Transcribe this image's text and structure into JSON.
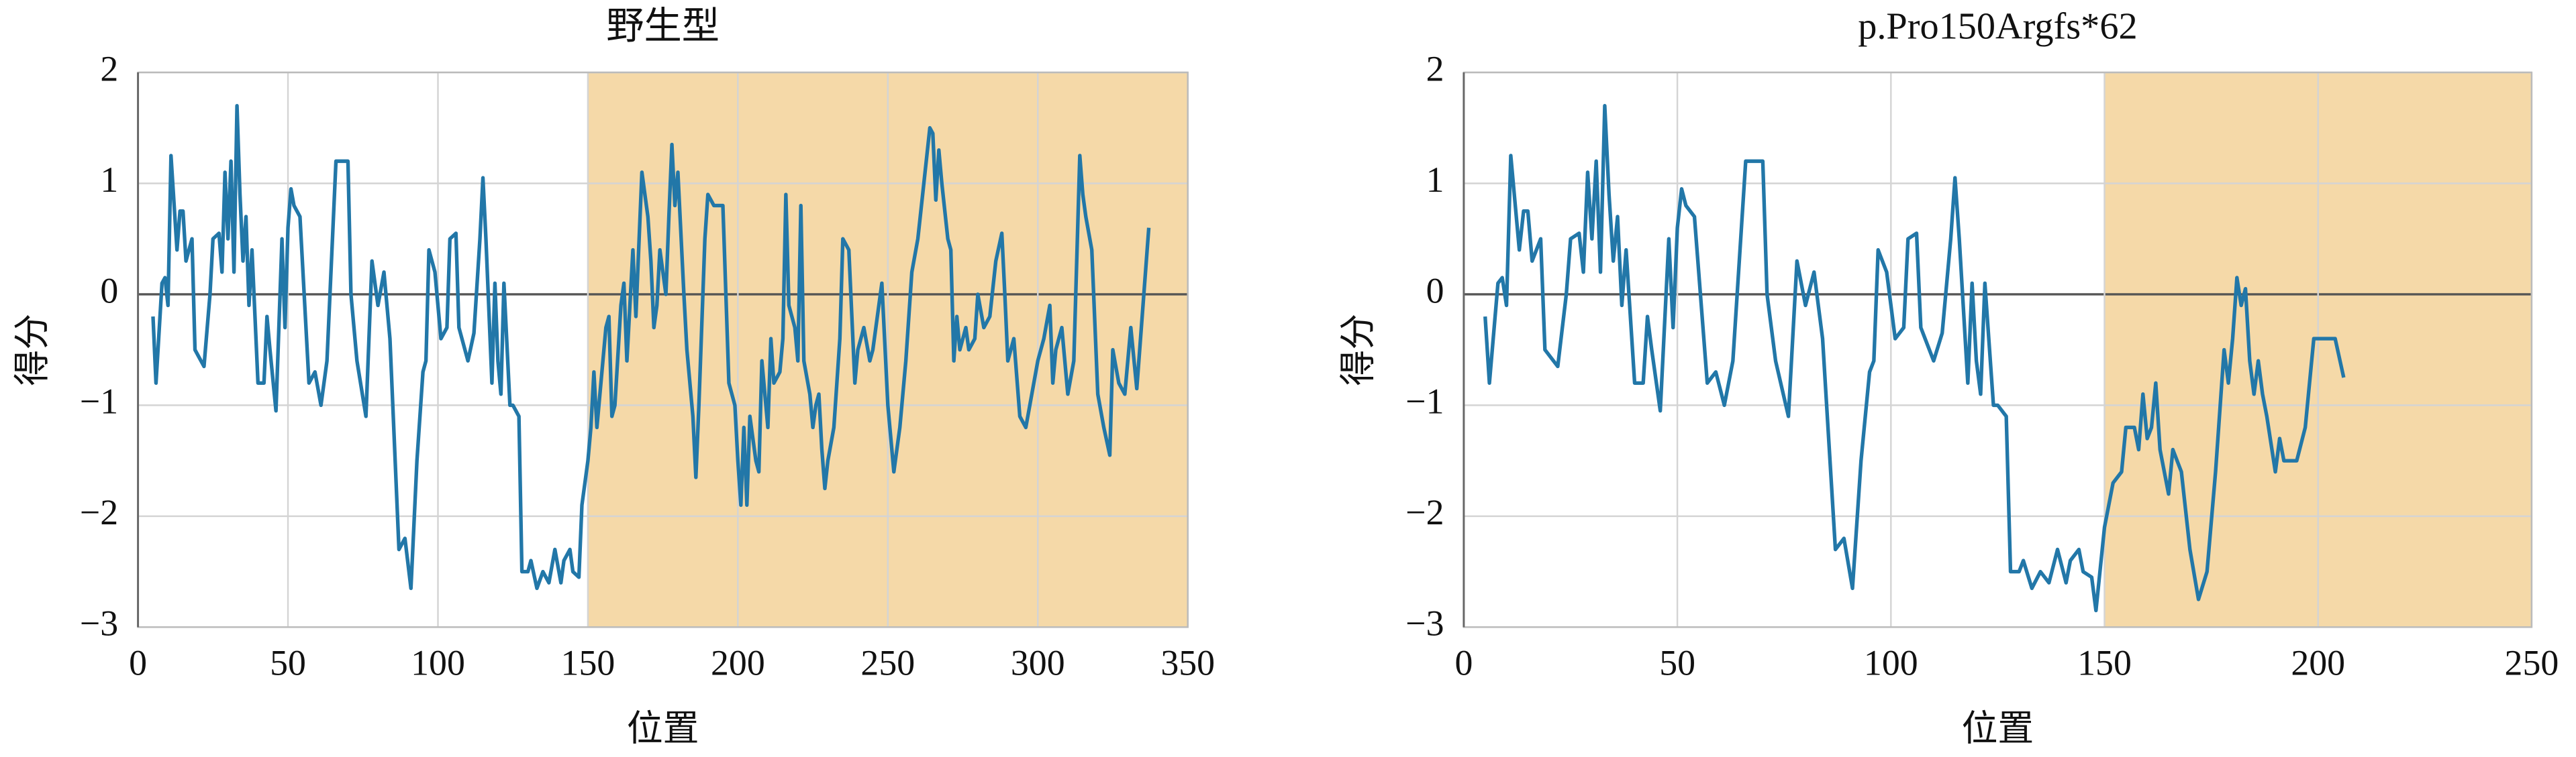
{
  "chart_data": [
    {
      "type": "line",
      "title": "野生型",
      "xlabel": "位置",
      "ylabel": "得分",
      "xlim": [
        0,
        350
      ],
      "ylim": [
        -3,
        2
      ],
      "xticks": [
        0,
        50,
        100,
        150,
        200,
        250,
        300,
        350
      ],
      "yticks": [
        {
          "value": -3,
          "label": "−3"
        },
        {
          "value": -2,
          "label": "−2"
        },
        {
          "value": -1,
          "label": "−1"
        },
        0,
        1,
        2
      ],
      "grid": true,
      "shaded_region": [
        150,
        350
      ],
      "shade_color": "#f5d9a8",
      "x": [
        5,
        6,
        8,
        9,
        10,
        11,
        13,
        14,
        15,
        16,
        18,
        19,
        21,
        22,
        24,
        25,
        27,
        28,
        29,
        30,
        31,
        32,
        33,
        34,
        35,
        36,
        37,
        38,
        40,
        42,
        43,
        44,
        46,
        48,
        49,
        50,
        51,
        52,
        54,
        57,
        59,
        61,
        63,
        66,
        70,
        71,
        73,
        76,
        78,
        80,
        82,
        84,
        87,
        89,
        91,
        93,
        95,
        96,
        97,
        99,
        101,
        103,
        104,
        106,
        107,
        108,
        110,
        112,
        114,
        115,
        116,
        118,
        119,
        120,
        121,
        122,
        124,
        125,
        127,
        128,
        130,
        131,
        133,
        135,
        137,
        139,
        141,
        142,
        144,
        145,
        147,
        148,
        150,
        151,
        152,
        153,
        154,
        156,
        157,
        158,
        159,
        161,
        162,
        163,
        165,
        166,
        168,
        170,
        171,
        172,
        173,
        174,
        176,
        177,
        178,
        179,
        180,
        182,
        183,
        185,
        186,
        187,
        189,
        190,
        192,
        195,
        196,
        197,
        199,
        200,
        201,
        202,
        203,
        204,
        206,
        207,
        208,
        210,
        211,
        212,
        214,
        215,
        216,
        217,
        219,
        220,
        221,
        222,
        224,
        225,
        226,
        227,
        228,
        229,
        230,
        232,
        234,
        235,
        237,
        239,
        240,
        242,
        244,
        245,
        247,
        248,
        250,
        252,
        254,
        256,
        258,
        260,
        262,
        264,
        265,
        266,
        267,
        268,
        270,
        271,
        272,
        273,
        274,
        276,
        277,
        279,
        280,
        282,
        284,
        286,
        288,
        289,
        290,
        292,
        294,
        296,
        298,
        300,
        302,
        304,
        305,
        306,
        308,
        310,
        312,
        314,
        315,
        316,
        318,
        320,
        322,
        324,
        325,
        327,
        329,
        331,
        333,
        337
      ],
      "series": [
        {
          "color": "#2277a8",
          "values": [
            -0.2,
            -0.8,
            0.1,
            0.15,
            -0.1,
            1.25,
            0.4,
            0.75,
            0.75,
            0.3,
            0.5,
            -0.5,
            -0.6,
            -0.65,
            0,
            0.5,
            0.55,
            0.2,
            1.1,
            0.5,
            1.2,
            0.2,
            1.7,
            0.9,
            0.3,
            0.7,
            -0.1,
            0.4,
            -0.8,
            -0.8,
            -0.2,
            -0.5,
            -1.05,
            0.5,
            -0.3,
            0.6,
            0.95,
            0.8,
            0.7,
            -0.8,
            -0.7,
            -1.0,
            -0.6,
            1.2,
            1.2,
            0,
            -0.6,
            -1.1,
            0.3,
            -0.1,
            0.2,
            -0.4,
            -2.3,
            -2.2,
            -2.65,
            -1.5,
            -0.7,
            -0.6,
            0.4,
            0.2,
            -0.4,
            -0.3,
            0.5,
            0.55,
            -0.3,
            -0.4,
            -0.6,
            -0.35,
            0.5,
            1.05,
            0.5,
            -0.8,
            0.1,
            -0.6,
            -0.9,
            0.1,
            -1.0,
            -1.0,
            -1.1,
            -2.5,
            -2.5,
            -2.4,
            -2.65,
            -2.5,
            -2.6,
            -2.3,
            -2.6,
            -2.4,
            -2.3,
            -2.5,
            -2.55,
            -1.9,
            -1.5,
            -1.2,
            -0.7,
            -1.2,
            -0.9,
            -0.3,
            -0.2,
            -1.1,
            -1.0,
            -0.1,
            0.1,
            -0.6,
            0.4,
            -0.2,
            1.1,
            0.7,
            0.3,
            -0.3,
            -0.1,
            0.4,
            0,
            0.7,
            1.35,
            0.8,
            1.1,
            0,
            -0.5,
            -1.1,
            -1.65,
            -1.0,
            0.5,
            0.9,
            0.8,
            0.8,
            0,
            -0.8,
            -1.0,
            -1.5,
            -1.9,
            -1.2,
            -1.9,
            -1.1,
            -1.5,
            -1.6,
            -0.6,
            -1.2,
            -0.4,
            -0.8,
            -0.7,
            -0.4,
            0.9,
            -0.1,
            -0.3,
            -0.6,
            0.8,
            -0.6,
            -0.9,
            -1.2,
            -1.0,
            -0.9,
            -1.4,
            -1.75,
            -1.5,
            -1.2,
            -0.4,
            0.5,
            0.4,
            -0.8,
            -0.5,
            -0.3,
            -0.6,
            -0.5,
            -0.1,
            0.1,
            -1.0,
            -1.6,
            -1.2,
            -0.6,
            0.2,
            0.5,
            1.0,
            1.5,
            1.45,
            0.85,
            1.3,
            1.0,
            0.5,
            0.4,
            -0.6,
            -0.2,
            -0.5,
            -0.3,
            -0.5,
            -0.4,
            0,
            -0.3,
            -0.2,
            0.3,
            0.55,
            0,
            -0.6,
            -0.4,
            -1.1,
            -1.2,
            -0.9,
            -0.6,
            -0.4,
            -0.1,
            -0.8,
            -0.5,
            -0.3,
            -0.9,
            -0.6,
            1.25,
            0.9,
            0.7,
            0.4,
            -0.9,
            -1.2,
            -1.45,
            -0.5,
            -0.8,
            -0.9,
            -0.3,
            -0.85,
            0.6
          ]
        }
      ]
    },
    {
      "type": "line",
      "title": "p.Pro150Argfs*62",
      "xlabel": "位置",
      "ylabel": "得分",
      "xlim": [
        0,
        250
      ],
      "ylim": [
        -3,
        2
      ],
      "xticks": [
        0,
        50,
        100,
        150,
        200,
        250
      ],
      "yticks": [
        {
          "value": -3,
          "label": "−3"
        },
        {
          "value": -2,
          "label": "−2"
        },
        {
          "value": -1,
          "label": "−1"
        },
        0,
        1,
        2
      ],
      "grid": true,
      "shaded_region": [
        150,
        250
      ],
      "shade_color": "#f5d9a8",
      "x": [
        5,
        6,
        8,
        9,
        10,
        11,
        13,
        14,
        15,
        16,
        18,
        19,
        21,
        22,
        24,
        25,
        27,
        28,
        29,
        30,
        31,
        32,
        33,
        34,
        35,
        36,
        37,
        38,
        40,
        42,
        43,
        44,
        46,
        48,
        49,
        50,
        51,
        52,
        54,
        57,
        59,
        61,
        63,
        66,
        70,
        71,
        73,
        76,
        78,
        80,
        82,
        84,
        87,
        89,
        91,
        93,
        95,
        96,
        97,
        99,
        101,
        103,
        104,
        106,
        107,
        108,
        110,
        112,
        114,
        115,
        116,
        118,
        119,
        120,
        121,
        122,
        124,
        125,
        127,
        128,
        130,
        131,
        133,
        135,
        137,
        139,
        141,
        142,
        144,
        145,
        147,
        148,
        150,
        152,
        154,
        155,
        157,
        158,
        159,
        160,
        161,
        162,
        163,
        164,
        165,
        166,
        168,
        170,
        172,
        174,
        176,
        178,
        179,
        180,
        181,
        182,
        183,
        184,
        185,
        186,
        187,
        188,
        189,
        190,
        191,
        192,
        193,
        195,
        197,
        199,
        201,
        204,
        206
      ],
      "series": [
        {
          "color": "#2277a8",
          "values": [
            -0.2,
            -0.8,
            0.1,
            0.15,
            -0.1,
            1.25,
            0.4,
            0.75,
            0.75,
            0.3,
            0.5,
            -0.5,
            -0.6,
            -0.65,
            0,
            0.5,
            0.55,
            0.2,
            1.1,
            0.5,
            1.2,
            0.2,
            1.7,
            0.9,
            0.3,
            0.7,
            -0.1,
            0.4,
            -0.8,
            -0.8,
            -0.2,
            -0.5,
            -1.05,
            0.5,
            -0.3,
            0.6,
            0.95,
            0.8,
            0.7,
            -0.8,
            -0.7,
            -1.0,
            -0.6,
            1.2,
            1.2,
            0,
            -0.6,
            -1.1,
            0.3,
            -0.1,
            0.2,
            -0.4,
            -2.3,
            -2.2,
            -2.65,
            -1.5,
            -0.7,
            -0.6,
            0.4,
            0.2,
            -0.4,
            -0.3,
            0.5,
            0.55,
            -0.3,
            -0.4,
            -0.6,
            -0.35,
            0.5,
            1.05,
            0.5,
            -0.8,
            0.1,
            -0.6,
            -0.9,
            0.1,
            -1.0,
            -1.0,
            -1.1,
            -2.5,
            -2.5,
            -2.4,
            -2.65,
            -2.5,
            -2.6,
            -2.3,
            -2.6,
            -2.4,
            -2.3,
            -2.5,
            -2.55,
            -2.85,
            -2.1,
            -1.7,
            -1.6,
            -1.2,
            -1.2,
            -1.4,
            -0.9,
            -1.3,
            -1.2,
            -0.8,
            -1.4,
            -1.6,
            -1.8,
            -1.4,
            -1.6,
            -2.3,
            -2.75,
            -2.5,
            -1.6,
            -0.5,
            -0.8,
            -0.4,
            0.15,
            -0.1,
            0.05,
            -0.6,
            -0.9,
            -0.6,
            -0.9,
            -1.1,
            -1.35,
            -1.6,
            -1.3,
            -1.5,
            -1.5,
            -1.5,
            -1.2,
            -0.4,
            -0.4,
            -0.4,
            -0.75
          ]
        }
      ]
    }
  ]
}
